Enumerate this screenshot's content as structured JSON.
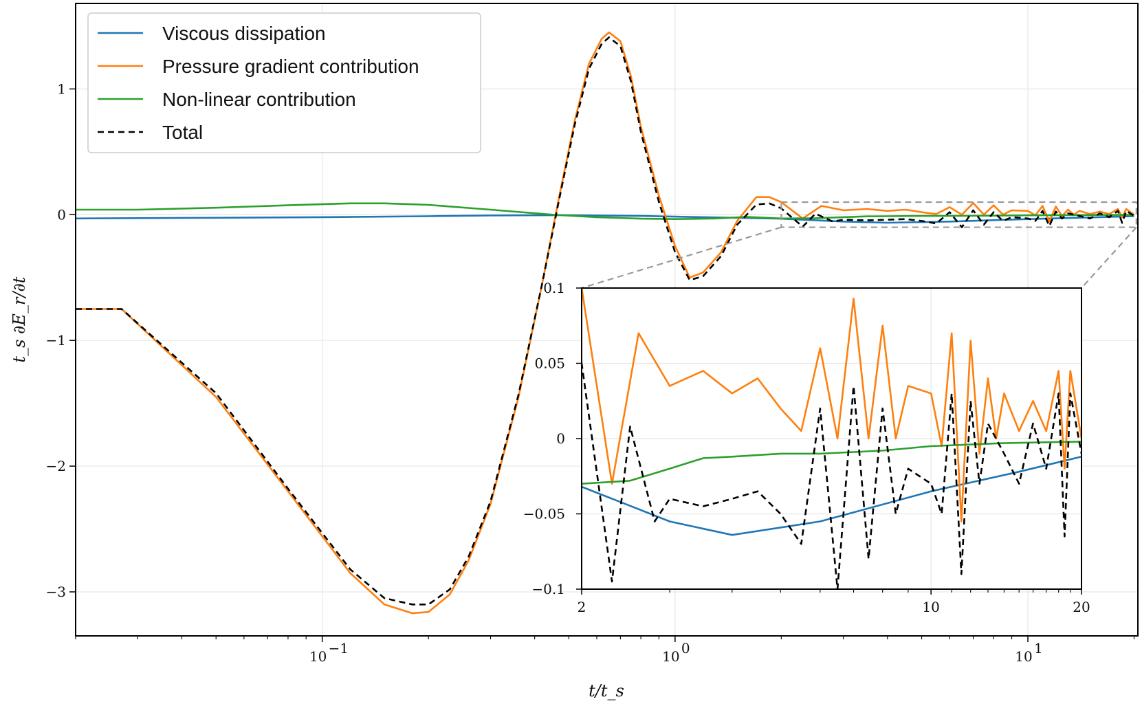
{
  "chart_data": {
    "type": "line",
    "xscale": "log",
    "xlim": [
      0.02,
      20.5
    ],
    "ylim": [
      -3.35,
      1.68
    ],
    "xlabel": "t/t_s",
    "ylabel": "t_s ∂E_r/∂t",
    "xticks": [
      {
        "value": 0.1,
        "base": "10",
        "exp": "−1"
      },
      {
        "value": 1,
        "base": "10",
        "exp": "0"
      },
      {
        "value": 10,
        "base": "10",
        "exp": "1"
      }
    ],
    "yticks": [
      {
        "value": 1,
        "label": "1"
      },
      {
        "value": 0,
        "label": "0"
      },
      {
        "value": -1,
        "label": "−1"
      },
      {
        "value": -2,
        "label": "−2"
      },
      {
        "value": -3,
        "label": "−3"
      }
    ],
    "legend_position": "top-left",
    "series": [
      {
        "name": "Viscous dissipation",
        "color": "#1f77b4",
        "dash": "",
        "points": [
          [
            0.02,
            -0.03
          ],
          [
            0.05,
            -0.025
          ],
          [
            0.1,
            -0.02
          ],
          [
            0.2,
            -0.012
          ],
          [
            0.3,
            -0.006
          ],
          [
            0.5,
            -0.004
          ],
          [
            0.8,
            -0.01
          ],
          [
            1.2,
            -0.02
          ],
          [
            2,
            -0.032
          ],
          [
            3,
            -0.055
          ],
          [
            4,
            -0.064
          ],
          [
            6,
            -0.055
          ],
          [
            10,
            -0.035
          ],
          [
            15,
            -0.022
          ],
          [
            20,
            -0.012
          ]
        ]
      },
      {
        "name": "Pressure gradient contribution",
        "color": "#ff7f0e",
        "dash": "",
        "points": [
          [
            0.02,
            -0.75
          ],
          [
            0.027,
            -0.75
          ],
          [
            0.05,
            -1.45
          ],
          [
            0.08,
            -2.2
          ],
          [
            0.12,
            -2.85
          ],
          [
            0.15,
            -3.1
          ],
          [
            0.18,
            -3.17
          ],
          [
            0.2,
            -3.16
          ],
          [
            0.23,
            -3.02
          ],
          [
            0.26,
            -2.75
          ],
          [
            0.3,
            -2.3
          ],
          [
            0.36,
            -1.45
          ],
          [
            0.42,
            -0.55
          ],
          [
            0.47,
            0.15
          ],
          [
            0.52,
            0.75
          ],
          [
            0.57,
            1.2
          ],
          [
            0.62,
            1.4
          ],
          [
            0.65,
            1.45
          ],
          [
            0.7,
            1.38
          ],
          [
            0.75,
            1.1
          ],
          [
            0.8,
            0.7
          ],
          [
            0.9,
            0.15
          ],
          [
            1,
            -0.25
          ],
          [
            1.1,
            -0.5
          ],
          [
            1.2,
            -0.46
          ],
          [
            1.35,
            -0.3
          ],
          [
            1.5,
            -0.05
          ],
          [
            1.7,
            0.14
          ],
          [
            1.85,
            0.14
          ],
          [
            2,
            0.1
          ],
          [
            2.3,
            -0.03
          ],
          [
            2.6,
            0.07
          ],
          [
            3,
            0.035
          ],
          [
            3.5,
            0.045
          ],
          [
            4,
            0.03
          ],
          [
            4.5,
            0.04
          ],
          [
            5,
            0.02
          ],
          [
            5.5,
            0.005
          ],
          [
            6,
            0.06
          ],
          [
            6.5,
            0.0
          ],
          [
            7,
            0.093
          ],
          [
            7.5,
            0.0
          ],
          [
            8,
            0.075
          ],
          [
            8.5,
            0.0
          ],
          [
            9,
            0.035
          ],
          [
            10,
            0.03
          ],
          [
            10.5,
            -0.005
          ],
          [
            11,
            0.07
          ],
          [
            11.5,
            -0.055
          ],
          [
            12,
            0.065
          ],
          [
            12.5,
            -0.01
          ],
          [
            13,
            0.04
          ],
          [
            13.5,
            0.0
          ],
          [
            14,
            0.03
          ],
          [
            15,
            0.005
          ],
          [
            16,
            0.025
          ],
          [
            17,
            0.005
          ],
          [
            18,
            0.045
          ],
          [
            18.5,
            -0.02
          ],
          [
            19,
            0.045
          ],
          [
            20,
            0.0
          ]
        ]
      },
      {
        "name": "Non-linear contribution",
        "color": "#2ca02c",
        "dash": "",
        "points": [
          [
            0.02,
            0.04
          ],
          [
            0.03,
            0.04
          ],
          [
            0.05,
            0.055
          ],
          [
            0.08,
            0.075
          ],
          [
            0.12,
            0.09
          ],
          [
            0.15,
            0.09
          ],
          [
            0.2,
            0.078
          ],
          [
            0.3,
            0.04
          ],
          [
            0.45,
            0.0
          ],
          [
            0.6,
            -0.02
          ],
          [
            0.8,
            -0.032
          ],
          [
            1,
            -0.035
          ],
          [
            1.3,
            -0.03
          ],
          [
            1.6,
            -0.018
          ],
          [
            2,
            -0.03
          ],
          [
            2.5,
            -0.028
          ],
          [
            3,
            -0.02
          ],
          [
            3.5,
            -0.013
          ],
          [
            4,
            -0.012
          ],
          [
            5,
            -0.01
          ],
          [
            6,
            -0.01
          ],
          [
            8,
            -0.008
          ],
          [
            10,
            -0.005
          ],
          [
            14,
            -0.003
          ],
          [
            20,
            -0.002
          ]
        ]
      },
      {
        "name": "Total",
        "color": "#000000",
        "dash": "9,6",
        "points": [
          [
            0.02,
            -0.75
          ],
          [
            0.027,
            -0.75
          ],
          [
            0.05,
            -1.42
          ],
          [
            0.08,
            -2.18
          ],
          [
            0.12,
            -2.82
          ],
          [
            0.15,
            -3.05
          ],
          [
            0.18,
            -3.1
          ],
          [
            0.2,
            -3.1
          ],
          [
            0.23,
            -2.98
          ],
          [
            0.26,
            -2.72
          ],
          [
            0.3,
            -2.28
          ],
          [
            0.36,
            -1.43
          ],
          [
            0.42,
            -0.55
          ],
          [
            0.47,
            0.13
          ],
          [
            0.52,
            0.72
          ],
          [
            0.57,
            1.16
          ],
          [
            0.62,
            1.36
          ],
          [
            0.65,
            1.41
          ],
          [
            0.7,
            1.34
          ],
          [
            0.75,
            1.06
          ],
          [
            0.8,
            0.66
          ],
          [
            0.9,
            0.1
          ],
          [
            1,
            -0.3
          ],
          [
            1.1,
            -0.52
          ],
          [
            1.2,
            -0.49
          ],
          [
            1.35,
            -0.33
          ],
          [
            1.5,
            -0.08
          ],
          [
            1.7,
            0.08
          ],
          [
            1.85,
            0.09
          ],
          [
            2,
            0.05
          ],
          [
            2.3,
            -0.095
          ],
          [
            2.5,
            0.008
          ],
          [
            2.8,
            -0.055
          ],
          [
            3,
            -0.04
          ],
          [
            3.5,
            -0.045
          ],
          [
            4,
            -0.04
          ],
          [
            4.5,
            -0.035
          ],
          [
            5,
            -0.05
          ],
          [
            5.5,
            -0.07
          ],
          [
            6,
            0.02
          ],
          [
            6.5,
            -0.1
          ],
          [
            7,
            0.035
          ],
          [
            7.5,
            -0.08
          ],
          [
            8,
            0.02
          ],
          [
            8.5,
            -0.05
          ],
          [
            9,
            -0.02
          ],
          [
            10,
            -0.03
          ],
          [
            10.5,
            -0.05
          ],
          [
            11,
            0.03
          ],
          [
            11.5,
            -0.09
          ],
          [
            12,
            0.025
          ],
          [
            12.5,
            -0.03
          ],
          [
            13,
            0.01
          ],
          [
            14,
            -0.01
          ],
          [
            15,
            -0.03
          ],
          [
            16,
            0.01
          ],
          [
            17,
            -0.02
          ],
          [
            18,
            0.03
          ],
          [
            18.5,
            -0.065
          ],
          [
            19,
            0.03
          ],
          [
            20,
            -0.01
          ]
        ]
      }
    ],
    "inset": {
      "xlim": [
        2,
        20
      ],
      "ylim": [
        -0.1,
        0.1
      ],
      "xticks": [
        {
          "value": 2,
          "label": "2"
        },
        {
          "value": 10,
          "label": "10"
        },
        {
          "value": 20,
          "label": "20"
        }
      ],
      "yticks": [
        {
          "value": 0.1,
          "label": "0.1"
        },
        {
          "value": 0.05,
          "label": "0.05"
        },
        {
          "value": 0,
          "label": "0"
        },
        {
          "value": -0.05,
          "label": "−0.05"
        },
        {
          "value": -0.1,
          "label": "−0.1"
        }
      ],
      "zoom_box": {
        "x": [
          2,
          20.3
        ],
        "y": [
          -0.1,
          0.1
        ]
      }
    }
  }
}
